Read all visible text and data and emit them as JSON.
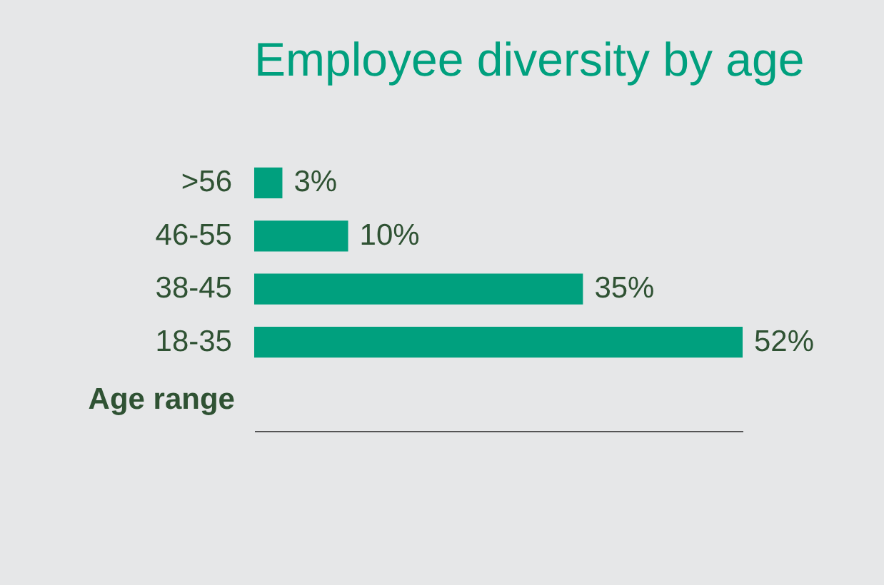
{
  "chart_data": {
    "type": "bar",
    "orientation": "horizontal",
    "title": "Employee diversity by age",
    "ylabel": "Age range",
    "categories": [
      ">56",
      "46-55",
      "38-45",
      "18-35"
    ],
    "values": [
      3,
      10,
      35,
      52
    ],
    "value_labels": [
      "3%",
      "10%",
      "35%",
      "52%"
    ],
    "color": "#00a07e",
    "tick_labels": "y",
    "grid": false
  }
}
